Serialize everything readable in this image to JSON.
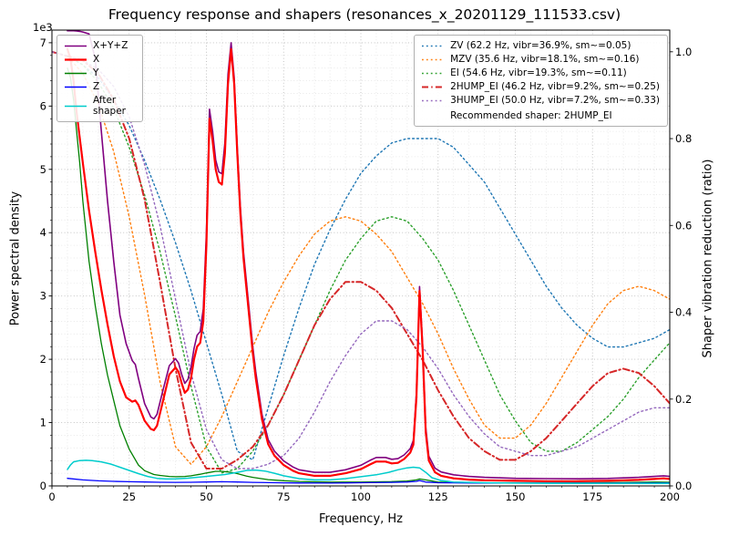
{
  "chart_data": {
    "type": "line",
    "title": "Frequency response and shapers (resonances_x_20201129_111533.csv)",
    "recommended": "Recommended shaper: 2HUMP_EI",
    "axes": {
      "x": {
        "label": "Frequency, Hz",
        "min": 0,
        "max": 200,
        "minor_step": 5,
        "ticks": [
          {
            "v": 0,
            "label": "0"
          },
          {
            "v": 25,
            "label": "25"
          },
          {
            "v": 50,
            "label": "50"
          },
          {
            "v": 75,
            "label": "75"
          },
          {
            "v": 100,
            "label": "100"
          },
          {
            "v": 125,
            "label": "125"
          },
          {
            "v": 150,
            "label": "150"
          },
          {
            "v": 175,
            "label": "175"
          },
          {
            "v": 200,
            "label": "200"
          }
        ]
      },
      "y_left": {
        "label": "Power spectral density",
        "offset_text": "1e3",
        "min": 0,
        "max": 7200,
        "minor_step": 200,
        "ticks": [
          {
            "v": 0,
            "label": "0"
          },
          {
            "v": 1000,
            "label": "1"
          },
          {
            "v": 2000,
            "label": "2"
          },
          {
            "v": 3000,
            "label": "3"
          },
          {
            "v": 4000,
            "label": "4"
          },
          {
            "v": 5000,
            "label": "5"
          },
          {
            "v": 6000,
            "label": "6"
          },
          {
            "v": 7000,
            "label": "7"
          }
        ]
      },
      "y_right": {
        "label": "Shaper vibration reduction (ratio)",
        "min": 0,
        "max": 1.05,
        "minor_step": 0.05,
        "ticks": [
          {
            "v": 0,
            "label": "0.0"
          },
          {
            "v": 0.2,
            "label": "0.2"
          },
          {
            "v": 0.4,
            "label": "0.4"
          },
          {
            "v": 0.6,
            "label": "0.6"
          },
          {
            "v": 0.8,
            "label": "0.8"
          },
          {
            "v": 1,
            "label": "1.0"
          }
        ]
      }
    },
    "psd_series": [
      {
        "label": "X+Y+Z",
        "color": "#800080",
        "style": "solid",
        "width": 1.6,
        "x": [
          5,
          6,
          7,
          8,
          9,
          10,
          12,
          14,
          16,
          18,
          20,
          22,
          24,
          26,
          27,
          28,
          30,
          32,
          33,
          34,
          36,
          38,
          40,
          41,
          42,
          43,
          44,
          45,
          46,
          47,
          48,
          49,
          50,
          51,
          52,
          53,
          54,
          55,
          56,
          57,
          58,
          59,
          60,
          61,
          62,
          63,
          64,
          65,
          66,
          68,
          70,
          72,
          75,
          78,
          80,
          85,
          90,
          95,
          100,
          103,
          105,
          108,
          110,
          112,
          114,
          116,
          117,
          118,
          119,
          120,
          121,
          122,
          124,
          126,
          130,
          135,
          140,
          150,
          160,
          170,
          180,
          190,
          195,
          198,
          200
        ],
        "values": [
          7190,
          7190,
          7190,
          7185,
          7180,
          7170,
          7140,
          6750,
          5600,
          4500,
          3550,
          2700,
          2250,
          1980,
          1920,
          1700,
          1300,
          1090,
          1060,
          1130,
          1520,
          1900,
          2010,
          1940,
          1760,
          1620,
          1680,
          1870,
          2170,
          2380,
          2440,
          2800,
          4000,
          5950,
          5600,
          5150,
          4960,
          4930,
          5420,
          6500,
          7000,
          6450,
          5350,
          4400,
          3700,
          3200,
          2700,
          2200,
          1800,
          1130,
          730,
          550,
          395,
          300,
          255,
          215,
          215,
          255,
          325,
          405,
          450,
          450,
          420,
          430,
          490,
          590,
          720,
          1480,
          3150,
          2230,
          930,
          470,
          280,
          220,
          175,
          150,
          135,
          120,
          115,
          112,
          118,
          135,
          150,
          160,
          150
        ]
      },
      {
        "label": "X",
        "color": "#ff0000",
        "style": "solid",
        "width": 2.2,
        "x": [
          5,
          6,
          7,
          8,
          9,
          10,
          12,
          14,
          16,
          18,
          20,
          22,
          24,
          26,
          27,
          28,
          30,
          32,
          33,
          34,
          36,
          38,
          40,
          41,
          42,
          43,
          44,
          45,
          46,
          47,
          48,
          49,
          50,
          51,
          52,
          53,
          54,
          55,
          56,
          57,
          58,
          59,
          60,
          61,
          62,
          63,
          64,
          65,
          66,
          68,
          70,
          72,
          75,
          78,
          80,
          85,
          90,
          95,
          100,
          103,
          105,
          108,
          110,
          112,
          114,
          116,
          117,
          118,
          119,
          120,
          121,
          122,
          124,
          126,
          130,
          135,
          140,
          150,
          160,
          170,
          180,
          190,
          195,
          198,
          200
        ],
        "values": [
          6900,
          6750,
          6400,
          5900,
          5500,
          5100,
          4350,
          3700,
          3100,
          2550,
          2050,
          1650,
          1400,
          1330,
          1350,
          1280,
          1030,
          900,
          880,
          950,
          1350,
          1760,
          1870,
          1800,
          1620,
          1470,
          1520,
          1700,
          2000,
          2200,
          2260,
          2600,
          3800,
          5800,
          5450,
          5000,
          4800,
          4760,
          5250,
          6350,
          6900,
          6350,
          5250,
          4300,
          3600,
          3100,
          2600,
          2100,
          1700,
          1050,
          660,
          480,
          330,
          240,
          200,
          160,
          160,
          200,
          265,
          340,
          385,
          385,
          355,
          365,
          425,
          525,
          650,
          1400,
          3080,
          2150,
          850,
          400,
          215,
          160,
          120,
          100,
          90,
          80,
          75,
          75,
          80,
          95,
          110,
          120,
          110
        ]
      },
      {
        "label": "Y",
        "color": "#008000",
        "style": "solid",
        "width": 1.3,
        "x": [
          5,
          6,
          7,
          8,
          9,
          10,
          12,
          14,
          16,
          18,
          20,
          22,
          25,
          28,
          30,
          33,
          35,
          38,
          40,
          43,
          45,
          48,
          50,
          53,
          55,
          58,
          60,
          63,
          65,
          70,
          75,
          80,
          90,
          100,
          110,
          115,
          118,
          119,
          121,
          125,
          130,
          140,
          150,
          160,
          170,
          180,
          190,
          195,
          200
        ],
        "values": [
          6600,
          6450,
          6100,
          5600,
          5100,
          4500,
          3550,
          2850,
          2250,
          1750,
          1350,
          950,
          580,
          330,
          240,
          180,
          165,
          150,
          145,
          150,
          160,
          185,
          205,
          230,
          230,
          215,
          195,
          155,
          135,
          100,
          82,
          70,
          60,
          60,
          68,
          78,
          95,
          110,
          95,
          60,
          52,
          48,
          46,
          46,
          48,
          52,
          58,
          60,
          58
        ]
      },
      {
        "label": "Z",
        "color": "#0000ff",
        "style": "solid",
        "width": 1.3,
        "x": [
          5,
          10,
          15,
          20,
          25,
          30,
          35,
          40,
          45,
          50,
          55,
          60,
          65,
          70,
          80,
          90,
          100,
          110,
          115,
          118,
          119,
          121,
          125,
          140,
          160,
          180,
          200
        ],
        "values": [
          120,
          95,
          80,
          72,
          66,
          62,
          58,
          56,
          58,
          62,
          66,
          62,
          56,
          52,
          46,
          45,
          50,
          56,
          62,
          72,
          85,
          60,
          50,
          45,
          44,
          45,
          46
        ]
      },
      {
        "label": "After shaper",
        "color": "#00cccc",
        "style": "solid",
        "width": 1.5,
        "x": [
          5,
          6,
          7,
          9,
          11,
          13,
          16,
          19,
          22,
          25,
          28,
          31,
          34,
          37,
          40,
          44,
          48,
          52,
          56,
          60,
          63,
          66,
          69,
          72,
          75,
          80,
          85,
          90,
          95,
          100,
          105,
          109,
          112,
          115,
          117,
          119,
          121,
          123,
          126,
          130,
          140,
          150,
          160,
          170,
          180,
          190,
          200
        ],
        "values": [
          260,
          330,
          380,
          400,
          405,
          400,
          380,
          345,
          295,
          245,
          195,
          150,
          120,
          110,
          112,
          122,
          140,
          160,
          180,
          215,
          245,
          250,
          235,
          200,
          160,
          115,
          95,
          95,
          115,
          145,
          175,
          215,
          255,
          285,
          295,
          285,
          215,
          130,
          85,
          62,
          50,
          45,
          42,
          40,
          40,
          40,
          40
        ]
      }
    ],
    "shaper_x": [
      0,
      5,
      10,
      15,
      20,
      25,
      30,
      35,
      40,
      45,
      50,
      55,
      60,
      65,
      70,
      75,
      80,
      85,
      90,
      95,
      100,
      105,
      110,
      115,
      120,
      125,
      130,
      135,
      140,
      145,
      150,
      155,
      160,
      165,
      170,
      175,
      180,
      185,
      190,
      195,
      200
    ],
    "shaper_series": [
      {
        "label": "ZV (62.2 Hz, vibr=36.9%, sm~=0.05)",
        "color": "#1f77b4",
        "style": "dotted",
        "width": 1.4,
        "values": [
          1,
          0.99,
          0.97,
          0.94,
          0.89,
          0.83,
          0.75,
          0.66,
          0.56,
          0.45,
          0.33,
          0.21,
          0.08,
          0.06,
          0.18,
          0.3,
          0.41,
          0.51,
          0.59,
          0.66,
          0.72,
          0.76,
          0.79,
          0.8,
          0.8,
          0.8,
          0.78,
          0.74,
          0.7,
          0.64,
          0.58,
          0.52,
          0.46,
          0.41,
          0.37,
          0.34,
          0.32,
          0.32,
          0.33,
          0.34,
          0.36
        ]
      },
      {
        "label": "MZV (35.6 Hz, vibr=18.1%, sm~=0.16)",
        "color": "#ff7f0e",
        "style": "dotted",
        "width": 1.4,
        "values": [
          1,
          0.99,
          0.95,
          0.88,
          0.77,
          0.62,
          0.44,
          0.24,
          0.09,
          0.05,
          0.09,
          0.16,
          0.24,
          0.32,
          0.4,
          0.47,
          0.53,
          0.58,
          0.61,
          0.62,
          0.61,
          0.58,
          0.54,
          0.48,
          0.42,
          0.35,
          0.27,
          0.2,
          0.14,
          0.11,
          0.11,
          0.14,
          0.19,
          0.25,
          0.31,
          0.37,
          0.42,
          0.45,
          0.46,
          0.45,
          0.43
        ]
      },
      {
        "label": "EI (54.6 Hz, vibr=19.3%, sm~=0.11)",
        "color": "#2ca02c",
        "style": "dotted",
        "width": 1.4,
        "values": [
          1,
          0.99,
          0.97,
          0.93,
          0.87,
          0.78,
          0.67,
          0.54,
          0.39,
          0.23,
          0.09,
          0.03,
          0.04,
          0.08,
          0.14,
          0.21,
          0.29,
          0.37,
          0.45,
          0.52,
          0.57,
          0.61,
          0.62,
          0.61,
          0.57,
          0.52,
          0.45,
          0.37,
          0.29,
          0.21,
          0.15,
          0.1,
          0.08,
          0.08,
          0.1,
          0.13,
          0.16,
          0.2,
          0.25,
          0.29,
          0.33
        ]
      },
      {
        "label": "2HUMP_EI (46.2 Hz, vibr=9.2%, sm~=0.25)",
        "color": "#d62728",
        "style": "dashdot",
        "width": 2,
        "values": [
          1,
          0.99,
          0.98,
          0.95,
          0.89,
          0.8,
          0.66,
          0.47,
          0.27,
          0.1,
          0.04,
          0.04,
          0.06,
          0.09,
          0.14,
          0.21,
          0.29,
          0.37,
          0.43,
          0.47,
          0.47,
          0.45,
          0.41,
          0.35,
          0.29,
          0.22,
          0.16,
          0.11,
          0.08,
          0.06,
          0.06,
          0.08,
          0.11,
          0.15,
          0.19,
          0.23,
          0.26,
          0.27,
          0.26,
          0.23,
          0.19
        ]
      },
      {
        "label": "3HUMP_EI (50.0 Hz, vibr=7.2%, sm~=0.33)",
        "color": "#9467bd",
        "style": "dotted",
        "width": 1.4,
        "values": [
          1,
          0.99,
          0.98,
          0.96,
          0.92,
          0.85,
          0.74,
          0.6,
          0.43,
          0.26,
          0.13,
          0.06,
          0.04,
          0.04,
          0.05,
          0.07,
          0.11,
          0.17,
          0.24,
          0.3,
          0.35,
          0.38,
          0.38,
          0.36,
          0.32,
          0.27,
          0.21,
          0.16,
          0.12,
          0.09,
          0.08,
          0.07,
          0.07,
          0.08,
          0.09,
          0.11,
          0.13,
          0.15,
          0.17,
          0.18,
          0.18
        ]
      }
    ]
  }
}
